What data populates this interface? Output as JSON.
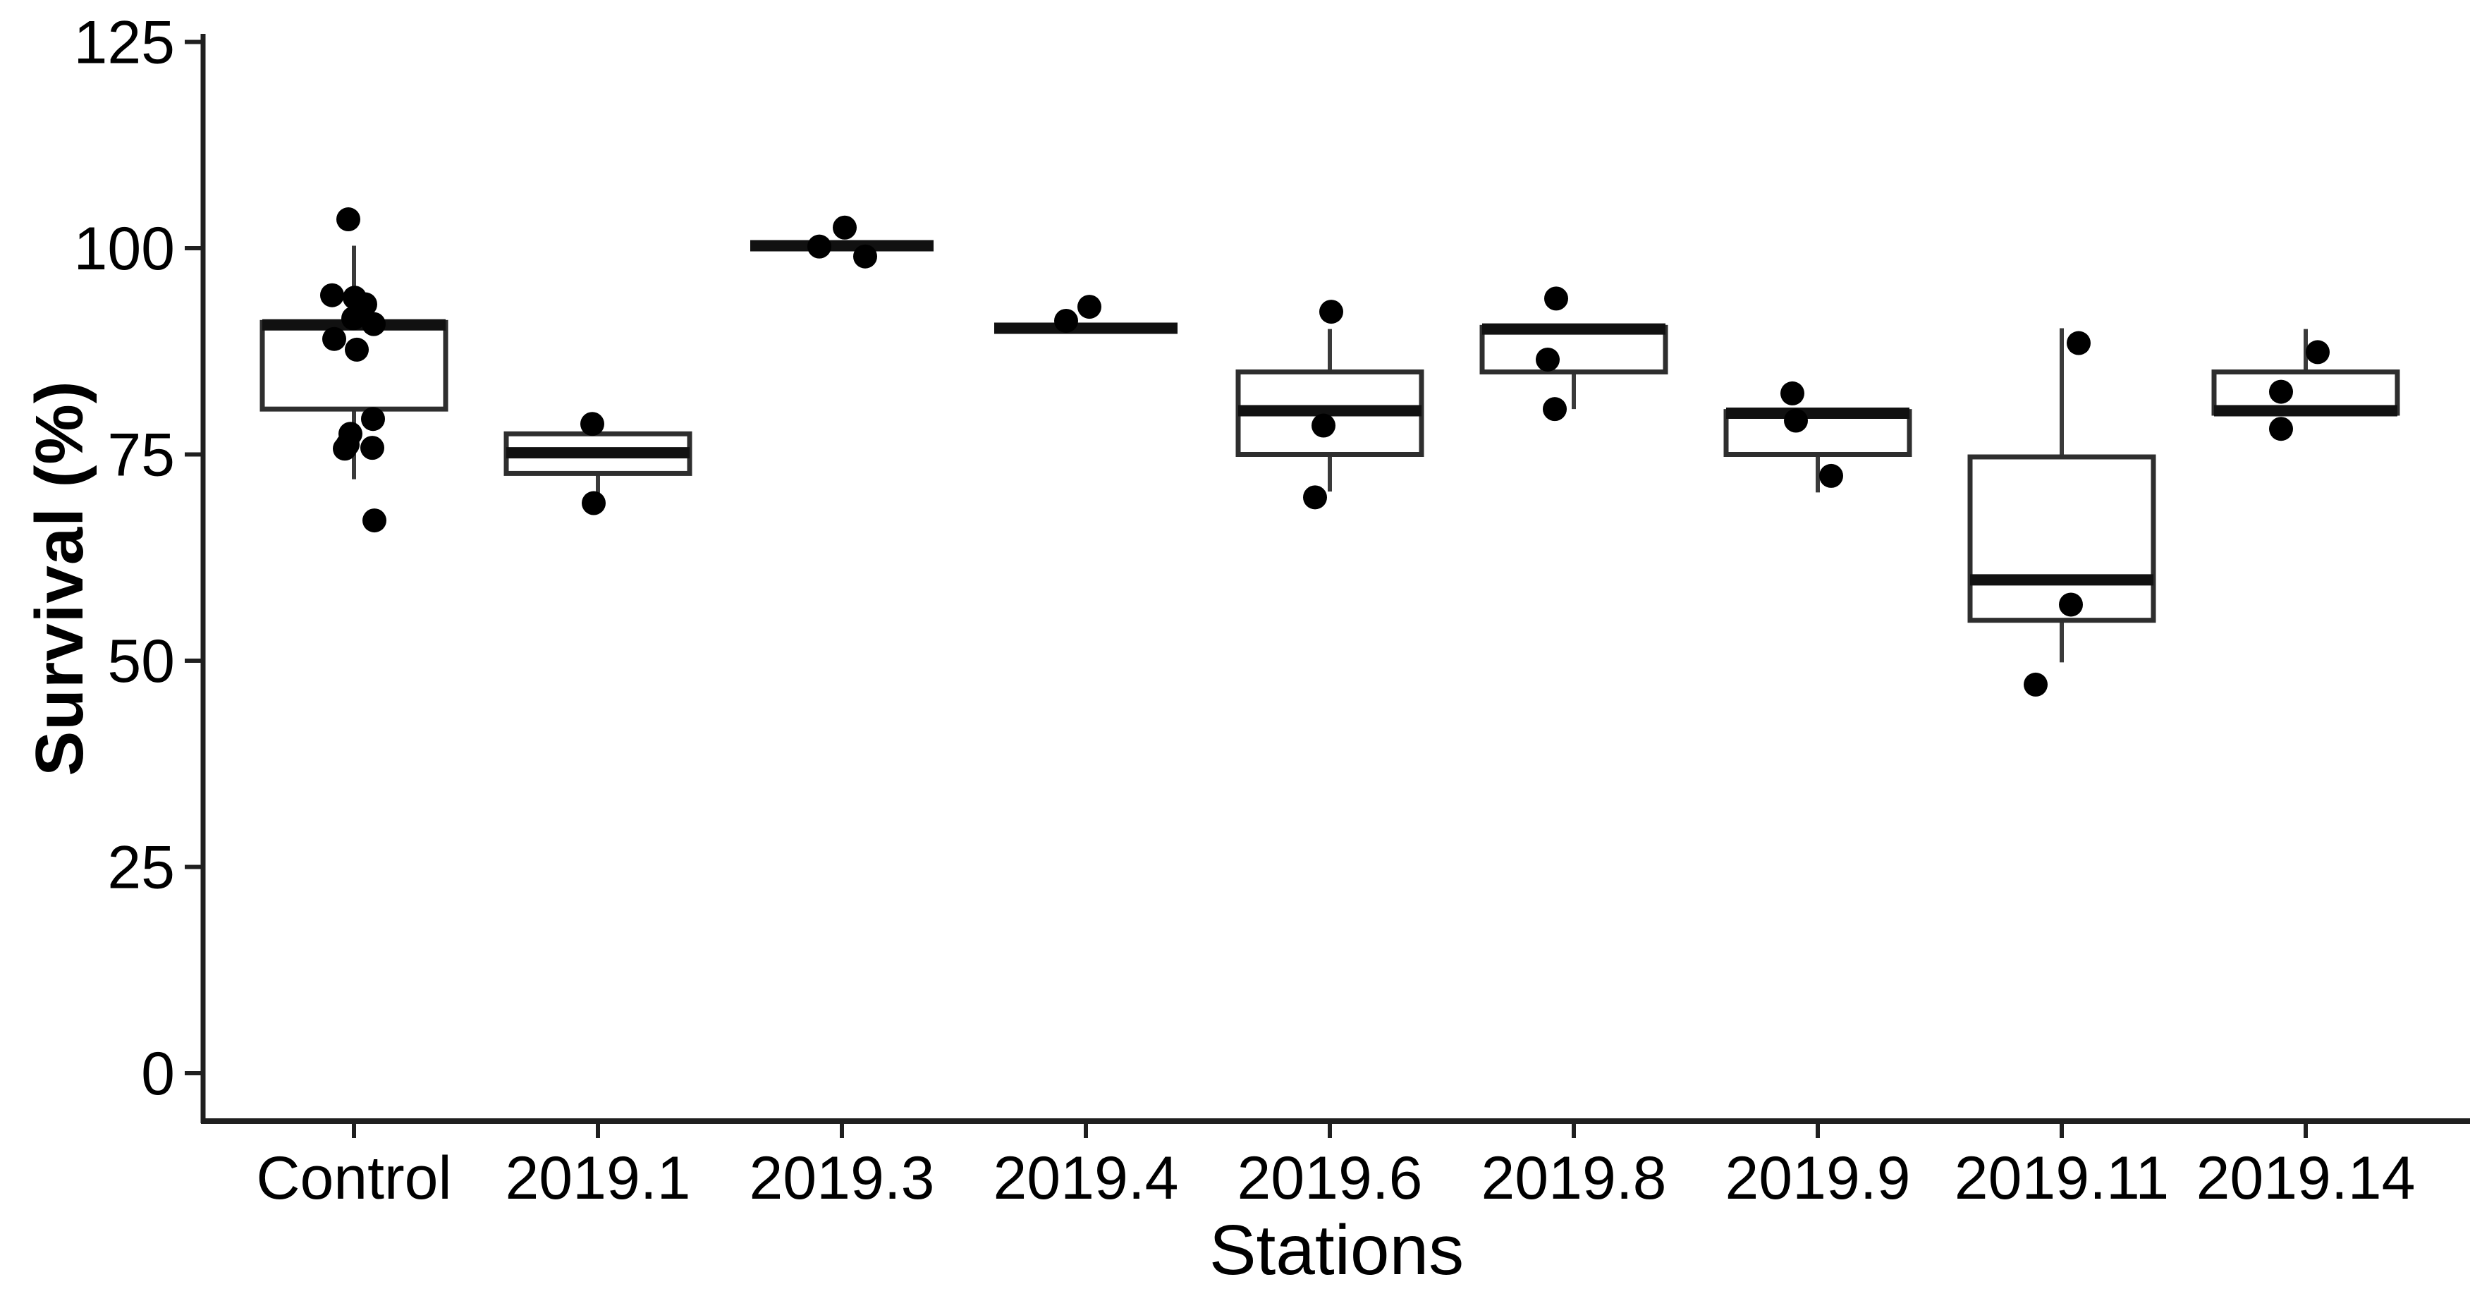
{
  "figure": {
    "ylabel": "Survival (%)",
    "xlabel": "Stations"
  },
  "chart_data": {
    "type": "boxplot",
    "title": "",
    "xlabel": "Stations",
    "ylabel": "Survival (%)",
    "ylim": [
      0,
      125
    ],
    "yticks": [
      0,
      25,
      50,
      75,
      100,
      125
    ],
    "grid": false,
    "legend": "none",
    "point_style": "black jittered dots overlaid on boxes",
    "categories": [
      "Control",
      "2019.1",
      "2019.3",
      "2019.4",
      "2019.6",
      "2019.8",
      "2019.9",
      "2019.11",
      "2019.14"
    ],
    "series": [
      {
        "label": "Control",
        "q1": 80.5,
        "median": 90.7,
        "q3": 91,
        "whisker_low": 72,
        "whisker_high": 100.3,
        "points": [
          [
            -8,
            103.5
          ],
          [
            -31,
            94.3
          ],
          [
            1,
            94
          ],
          [
            16,
            93.2
          ],
          [
            8,
            92.2
          ],
          [
            -1,
            91.5
          ],
          [
            28,
            90.8
          ],
          [
            -28,
            89
          ],
          [
            4,
            87.7
          ],
          [
            27,
            79.3
          ],
          [
            -5,
            77.5
          ],
          [
            -9,
            76.2
          ],
          [
            -13,
            75.7
          ],
          [
            26,
            75.8
          ],
          [
            29,
            67
          ]
        ]
      },
      {
        "label": "2019.1",
        "q1": 72.7,
        "median": 75.2,
        "q3": 77.5,
        "whisker_low": 70.3,
        "whisker_high": null,
        "points": [
          [
            -8,
            78.7
          ],
          [
            -6,
            69.1
          ]
        ]
      },
      {
        "label": "2019.3",
        "q1": 100.2,
        "median": 100.3,
        "q3": 100.4,
        "whisker_low": null,
        "whisker_high": null,
        "points": [
          [
            4,
            102.5
          ],
          [
            -32,
            100.2
          ],
          [
            33,
            99
          ]
        ]
      },
      {
        "label": "2019.4",
        "q1": 90.2,
        "median": 90.3,
        "q3": 90.4,
        "whisker_low": null,
        "whisker_high": null,
        "points": [
          [
            -28,
            91.2
          ],
          [
            5,
            92.9
          ]
        ]
      },
      {
        "label": "2019.6",
        "q1": 75,
        "median": 80.3,
        "q3": 85,
        "whisker_low": 70.5,
        "whisker_high": 90.2,
        "points": [
          [
            2,
            92.3
          ],
          [
            -9,
            78.5
          ],
          [
            -21,
            69.8
          ]
        ]
      },
      {
        "label": "2019.8",
        "q1": 85,
        "median": 90.2,
        "q3": 90.4,
        "whisker_low": 80.5,
        "whisker_high": null,
        "points": [
          [
            -25,
            93.9
          ],
          [
            -37,
            86.5
          ],
          [
            -27,
            80.5
          ]
        ]
      },
      {
        "label": "2019.9",
        "q1": 75,
        "median": 80,
        "q3": 80.2,
        "whisker_low": 70.4,
        "whisker_high": null,
        "points": [
          [
            -36,
            82.4
          ],
          [
            -31,
            79.1
          ],
          [
            19,
            72.4
          ]
        ]
      },
      {
        "label": "2019.11",
        "q1": 54.9,
        "median": 59.8,
        "q3": 74.7,
        "whisker_low": 49.8,
        "whisker_high": 90.3,
        "points": [
          [
            24,
            88.5
          ],
          [
            13,
            56.8
          ],
          [
            -37,
            47.1
          ]
        ]
      },
      {
        "label": "2019.14",
        "q1": 80,
        "median": 80.3,
        "q3": 85,
        "whisker_low": null,
        "whisker_high": 90.2,
        "points": [
          [
            17,
            87.4
          ],
          [
            -35,
            82.6
          ],
          [
            -35,
            78.1
          ]
        ]
      }
    ],
    "colors": {
      "box_stroke": "#2e2e2e",
      "median": "#111111",
      "whisker": "#3a3a3a",
      "point": "#000000",
      "axis": "#1f1f1f",
      "text": "#000000"
    }
  }
}
